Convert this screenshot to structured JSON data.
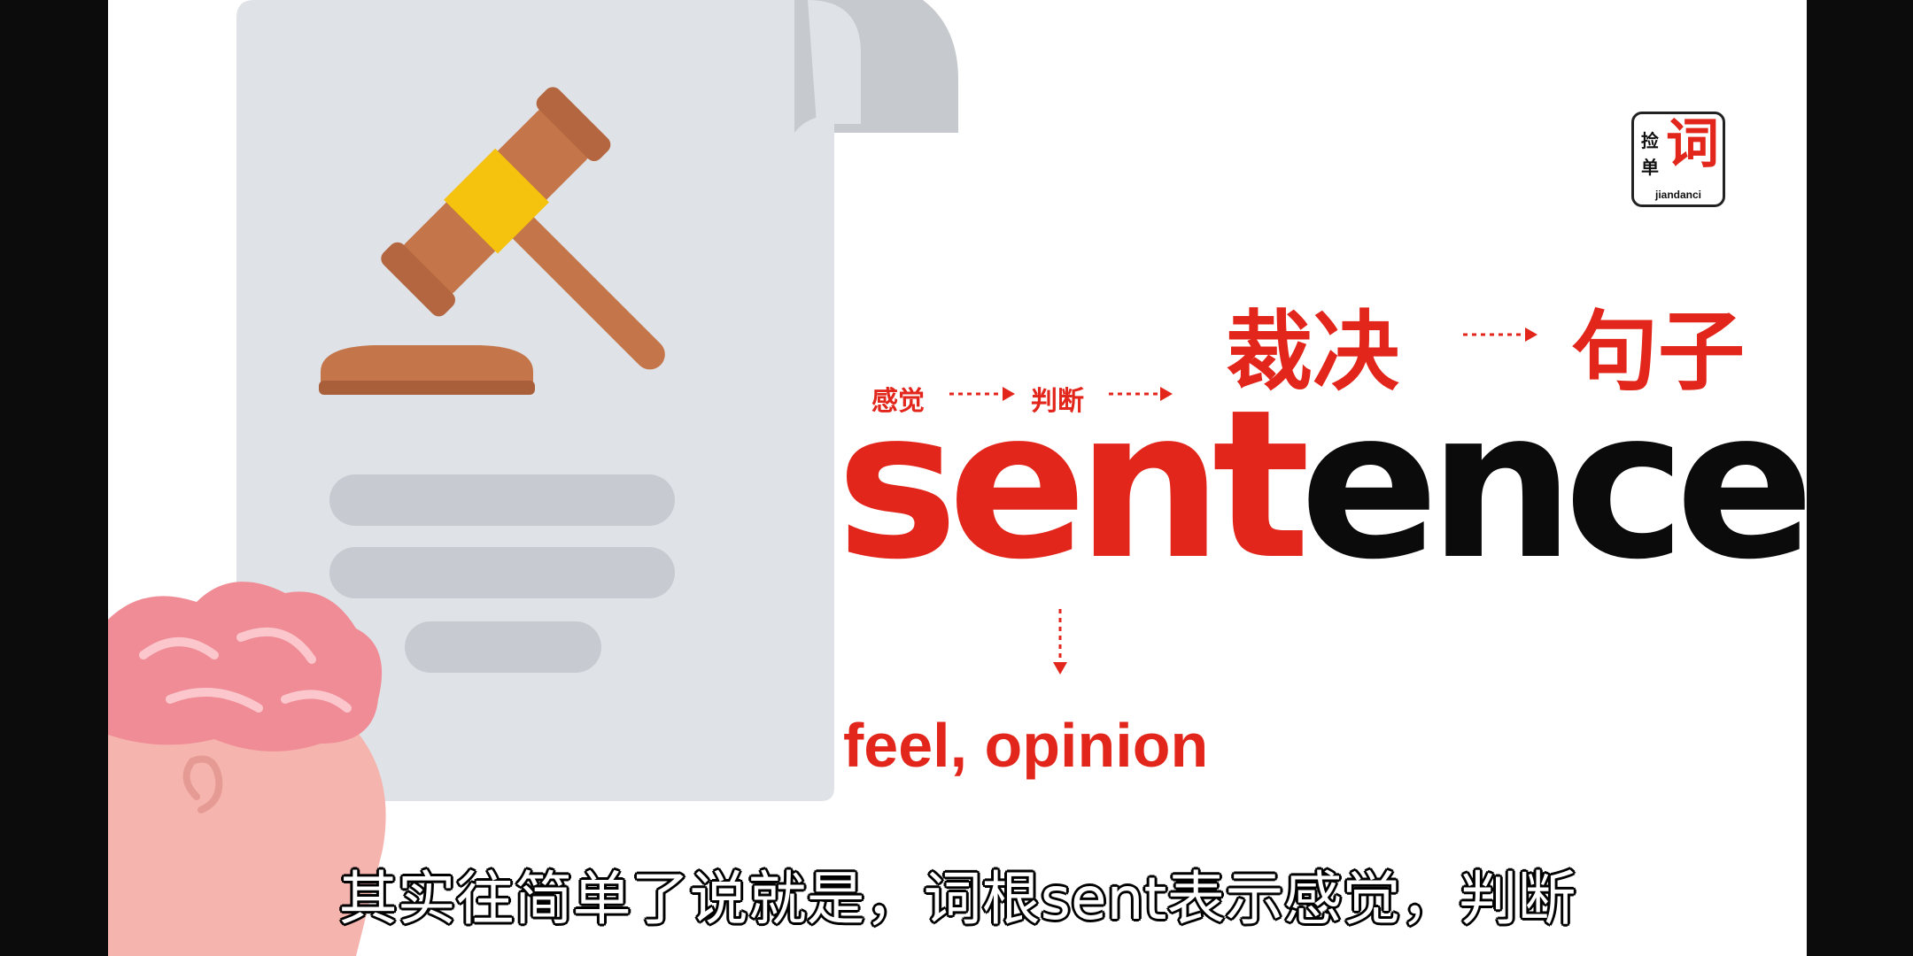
{
  "word": {
    "root": "sent",
    "rest": "ence"
  },
  "meanings_big": {
    "first": "裁决",
    "second": "句子"
  },
  "meanings_small": {
    "first": "感觉",
    "second": "判断"
  },
  "root_meaning": "feel, opinion",
  "logo": {
    "char_1": "捡",
    "char_2": "单",
    "main_char": "词",
    "pinyin": "jiandanci"
  },
  "subtitle": "其实往简单了说就是，词根sent表示感觉，判断",
  "colors": {
    "accent": "#e2261b",
    "text_dark": "#0b0b0b",
    "paper": "#dfe2e6",
    "paper_shadow": "#c6c9ce",
    "gavel": "#c4764a",
    "gavel_band": "#f5c20d",
    "brain": "#f08c96",
    "face": "#f6b4ae"
  },
  "icons": [
    "document-icon",
    "gavel-icon",
    "brain-head-icon"
  ]
}
